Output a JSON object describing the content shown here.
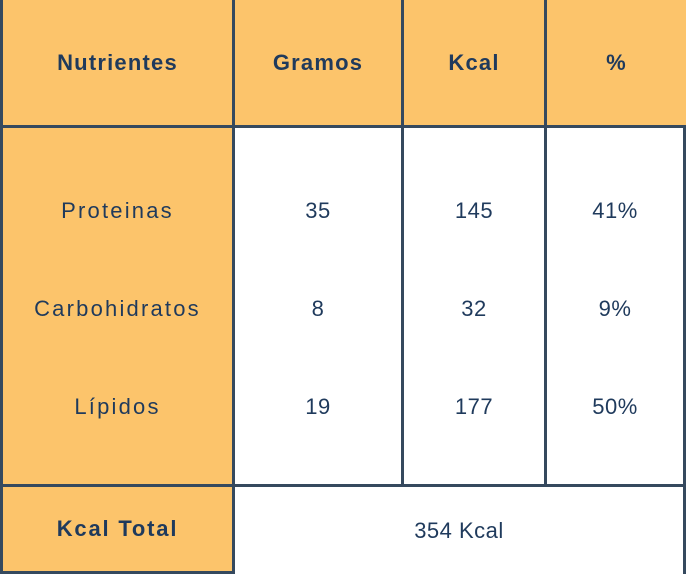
{
  "chart_data": {
    "type": "table",
    "title": "",
    "columns": [
      "Nutrientes",
      "Gramos",
      "Kcal",
      "%"
    ],
    "rows": [
      {
        "nutriente": "Proteinas",
        "gramos": 35,
        "kcal": 145,
        "pct": "41%"
      },
      {
        "nutriente": "Carbohidratos",
        "gramos": 8,
        "kcal": 32,
        "pct": "9%"
      },
      {
        "nutriente": "Lípidos",
        "gramos": 19,
        "kcal": 177,
        "pct": "50%"
      }
    ],
    "footer": {
      "label": "Kcal Total",
      "value": "354 Kcal"
    }
  },
  "table": {
    "headers": [
      "Nutrientes",
      "Gramos",
      "Kcal",
      "%"
    ],
    "rows": [
      {
        "nutrient": "Proteinas",
        "gramos": "35",
        "kcal": "145",
        "pct": "41%"
      },
      {
        "nutrient": "Carbohidratos",
        "gramos": "8",
        "kcal": "32",
        "pct": "9%"
      },
      {
        "nutrient": "Lípidos",
        "gramos": "19",
        "kcal": "177",
        "pct": "50%"
      }
    ],
    "footer": {
      "label": "Kcal Total",
      "value": "354 Kcal"
    }
  },
  "colors": {
    "orange": "#FCC46B",
    "navy_text": "#1F3A5C",
    "border": "#35495E",
    "cell_white": "#FFFFFF"
  }
}
